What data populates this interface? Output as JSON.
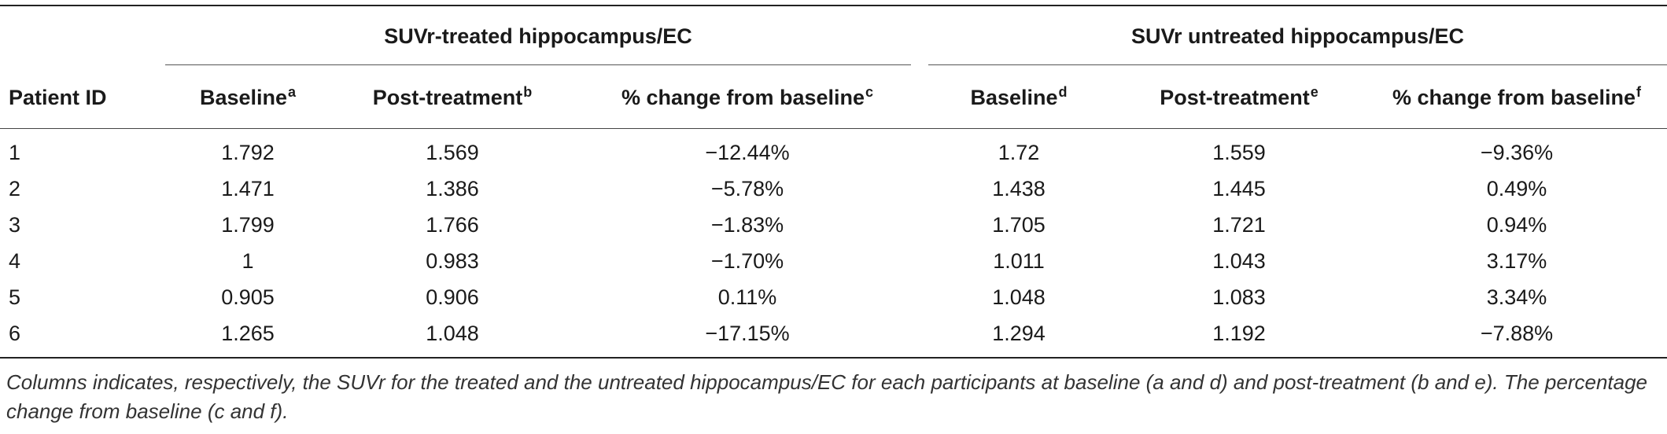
{
  "table": {
    "group_headers": {
      "treated": "SUVr-treated hippocampus/EC",
      "untreated": "SUVr untreated hippocampus/EC"
    },
    "columns": [
      {
        "label": "Patient ID",
        "sup": ""
      },
      {
        "label": "Baseline",
        "sup": "a"
      },
      {
        "label": "Post-treatment",
        "sup": "b"
      },
      {
        "label": "% change from baseline",
        "sup": "c"
      },
      {
        "label": "Baseline",
        "sup": "d"
      },
      {
        "label": "Post-treatment",
        "sup": "e"
      },
      {
        "label": "% change from baseline",
        "sup": "f"
      }
    ],
    "rows": [
      [
        "1",
        "1.792",
        "1.569",
        "−12.44%",
        "1.72",
        "1.559",
        "−9.36%"
      ],
      [
        "2",
        "1.471",
        "1.386",
        "−5.78%",
        "1.438",
        "1.445",
        "0.49%"
      ],
      [
        "3",
        "1.799",
        "1.766",
        "−1.83%",
        "1.705",
        "1.721",
        "0.94%"
      ],
      [
        "4",
        "1",
        "0.983",
        "−1.70%",
        "1.011",
        "1.043",
        "3.17%"
      ],
      [
        "5",
        "0.905",
        "0.906",
        "0.11%",
        "1.048",
        "1.083",
        "3.34%"
      ],
      [
        "6",
        "1.265",
        "1.048",
        "−17.15%",
        "1.294",
        "1.192",
        "−7.88%"
      ]
    ]
  },
  "footnote": "Columns indicates, respectively, the SUVr for the treated and the untreated hippocampus/EC for each participants at baseline (a and d) and post-treatment (b and e). The percentage change from baseline (c and f)."
}
